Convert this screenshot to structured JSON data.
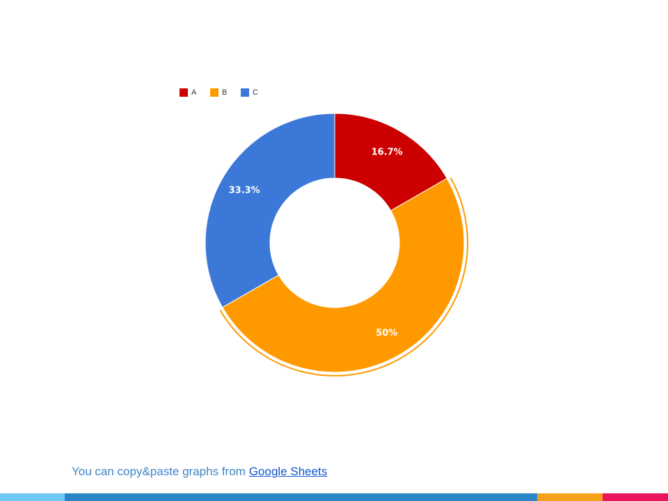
{
  "chart_data": {
    "type": "donut",
    "categories": [
      "A",
      "B",
      "C"
    ],
    "values": [
      16.7,
      50,
      33.3
    ],
    "value_labels": [
      "16.7%",
      "50%",
      "33.3%"
    ],
    "colors": [
      "#cc0000",
      "#ff9900",
      "#3c78d8"
    ],
    "legend": "top"
  },
  "footer": {
    "text": "You can copy&paste graphs from",
    "link": "Google Sheets"
  }
}
